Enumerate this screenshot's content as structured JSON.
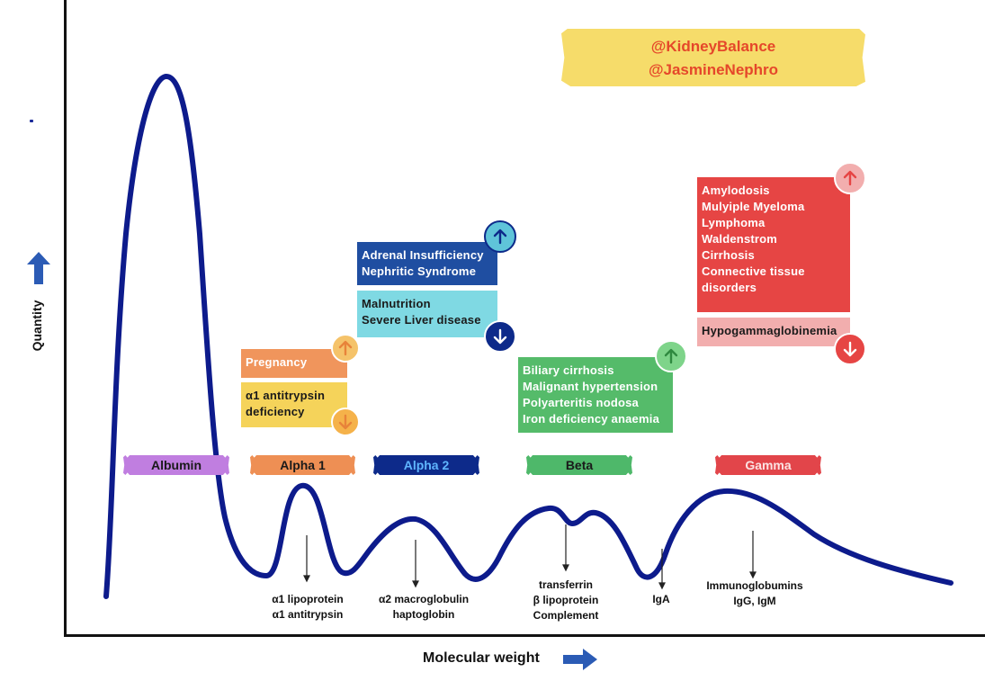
{
  "credits": {
    "line1": "@KidneyBalance",
    "line2": "@JasmineNephro"
  },
  "axes": {
    "x_label": "Molecular weight",
    "y_label": "Quantity"
  },
  "fractions": [
    {
      "label": "Albumin"
    },
    {
      "label": "Alpha 1"
    },
    {
      "label": "Alpha 2"
    },
    {
      "label": "Beta"
    },
    {
      "label": "Gamma"
    }
  ],
  "boxes": {
    "alpha1_up": {
      "lines": [
        "Pregnancy"
      ]
    },
    "alpha1_down": {
      "lines": [
        "α1 antitrypsin",
        "deficiency"
      ]
    },
    "alpha2_up": {
      "lines": [
        "Adrenal Insufficiency",
        "Nephritic Syndrome"
      ]
    },
    "alpha2_down": {
      "lines": [
        "Malnutrition",
        "Severe Liver disease"
      ]
    },
    "beta_up": {
      "lines": [
        "Biliary cirrhosis",
        "Malignant hypertension",
        "Polyarteritis nodosa",
        "Iron deficiency anaemia"
      ]
    },
    "gamma_up": {
      "lines": [
        "Amylodosis",
        "Mulyiple Myeloma",
        "Lymphoma",
        "Waldenstrom",
        "Cirrhosis",
        "Connective tissue",
        "disorders"
      ]
    },
    "gamma_down": {
      "lines": [
        "Hypogammaglobinemia"
      ]
    }
  },
  "peak_labels": {
    "alpha1": {
      "lines": [
        "α1 lipoprotein",
        "α1 antitrypsin"
      ]
    },
    "alpha2": {
      "lines": [
        "α2 macroglobulin",
        "haptoglobin"
      ]
    },
    "beta": {
      "lines": [
        "transferrin",
        "β lipoprotein",
        "Complement"
      ]
    },
    "iga": {
      "lines": [
        "IgA"
      ]
    },
    "gamma": {
      "lines": [
        "Immunoglobumins",
        "IgG, IgM"
      ]
    }
  },
  "colors": {
    "curve": "#0d1b8c",
    "arrow_blue": "#2b5bb5",
    "albumin_tape": "#c07ee0",
    "alpha1_tape": "#ee8f54",
    "alpha2_tape": "#0d2a8a",
    "alpha2_text": "#5fb6ff",
    "beta_tape": "#4eb86a",
    "gamma_tape": "#e2454a",
    "pregnancy_box": "#f0955c",
    "antitrypsin_box": "#f5d35a",
    "adrenal_box": "#1f4ea1",
    "malnutrition_box": "#7fd9e3",
    "beta_box": "#55bb6a",
    "gamma_box": "#e64544",
    "hypogamma_box": "#f2aeae",
    "credit_tape": "#f6dc6a",
    "credit_text": "#e5472a"
  }
}
